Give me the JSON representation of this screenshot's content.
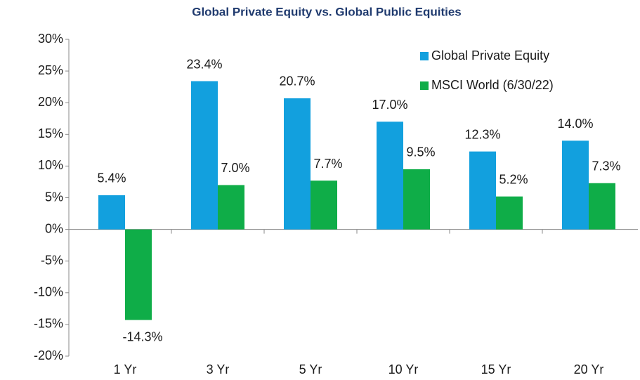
{
  "chart_data": {
    "type": "bar",
    "title": "Global Private Equity vs. Global Public Equities",
    "categories": [
      "1 Yr",
      "3 Yr",
      "5 Yr",
      "10 Yr",
      "15 Yr",
      "20 Yr"
    ],
    "series": [
      {
        "name": "Global Private Equity",
        "color": "#12a0de",
        "values": [
          5.4,
          23.4,
          20.7,
          17.0,
          12.3,
          14.0
        ],
        "value_labels": [
          "5.4%",
          "23.4%",
          "20.7%",
          "17.0%",
          "12.3%",
          "14.0%"
        ]
      },
      {
        "name": "MSCI World (6/30/22)",
        "color": "#0fad48",
        "values": [
          -14.3,
          7.0,
          7.7,
          9.5,
          5.2,
          7.3
        ],
        "value_labels": [
          "-14.3%",
          "7.0%",
          "7.7%",
          "9.5%",
          "5.2%",
          "7.3%"
        ]
      }
    ],
    "ylim": [
      -20,
      30
    ],
    "yticks": [
      {
        "value": -20,
        "label": "-20%"
      },
      {
        "value": -15,
        "label": "-15%"
      },
      {
        "value": -10,
        "label": "-10%"
      },
      {
        "value": -5,
        "label": "-5%"
      },
      {
        "value": 0,
        "label": "0%"
      },
      {
        "value": 5,
        "label": "5%"
      },
      {
        "value": 10,
        "label": "10%"
      },
      {
        "value": 15,
        "label": "15%"
      },
      {
        "value": 20,
        "label": "20%"
      },
      {
        "value": 25,
        "label": "25%"
      },
      {
        "value": 30,
        "label": "30%"
      }
    ],
    "legend": "top-right"
  }
}
